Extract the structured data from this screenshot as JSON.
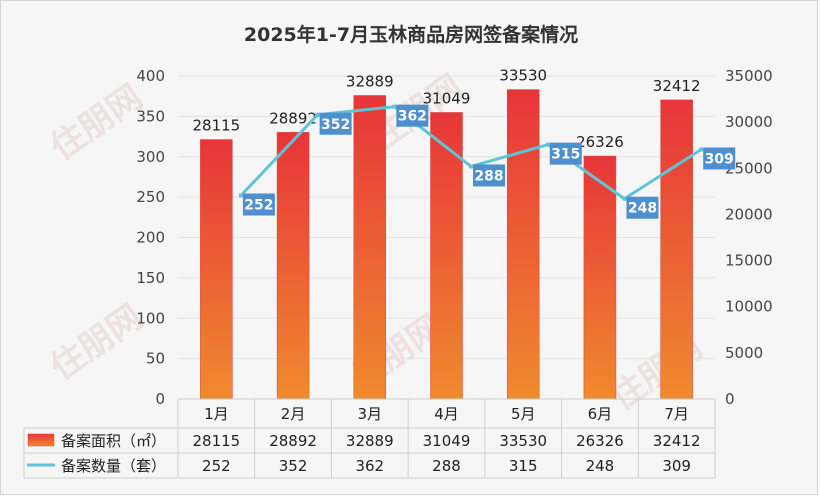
{
  "chart_data": {
    "type": "bar",
    "title": "2025年1-7月玉林商品房网签备案情况",
    "categories": [
      "1月",
      "2月",
      "3月",
      "4月",
      "5月",
      "6月",
      "7月"
    ],
    "series": [
      {
        "name": "备案面积（㎡）",
        "kind": "bar",
        "axis": "right",
        "values": [
          28115,
          28892,
          32889,
          31049,
          33530,
          26326,
          32412
        ]
      },
      {
        "name": "备案数量（套）",
        "kind": "line",
        "axis": "left",
        "values": [
          252,
          352,
          362,
          288,
          315,
          248,
          309
        ]
      }
    ],
    "y_left": {
      "min": 0,
      "max": 400,
      "ticks": [
        0,
        50,
        100,
        150,
        200,
        250,
        300,
        350,
        400
      ]
    },
    "y_right": {
      "min": 0,
      "max": 35000,
      "ticks": [
        0,
        5000,
        10000,
        15000,
        20000,
        25000,
        30000,
        35000
      ]
    },
    "legend": "data-table-below",
    "colors": {
      "bar_top": "#e7353a",
      "bar_bottom": "#f08a2e",
      "line": "#5fc4d6",
      "label_box": "#4d8fcf",
      "grid": "#e3e3e3",
      "table_border": "#cfcfcf"
    }
  }
}
